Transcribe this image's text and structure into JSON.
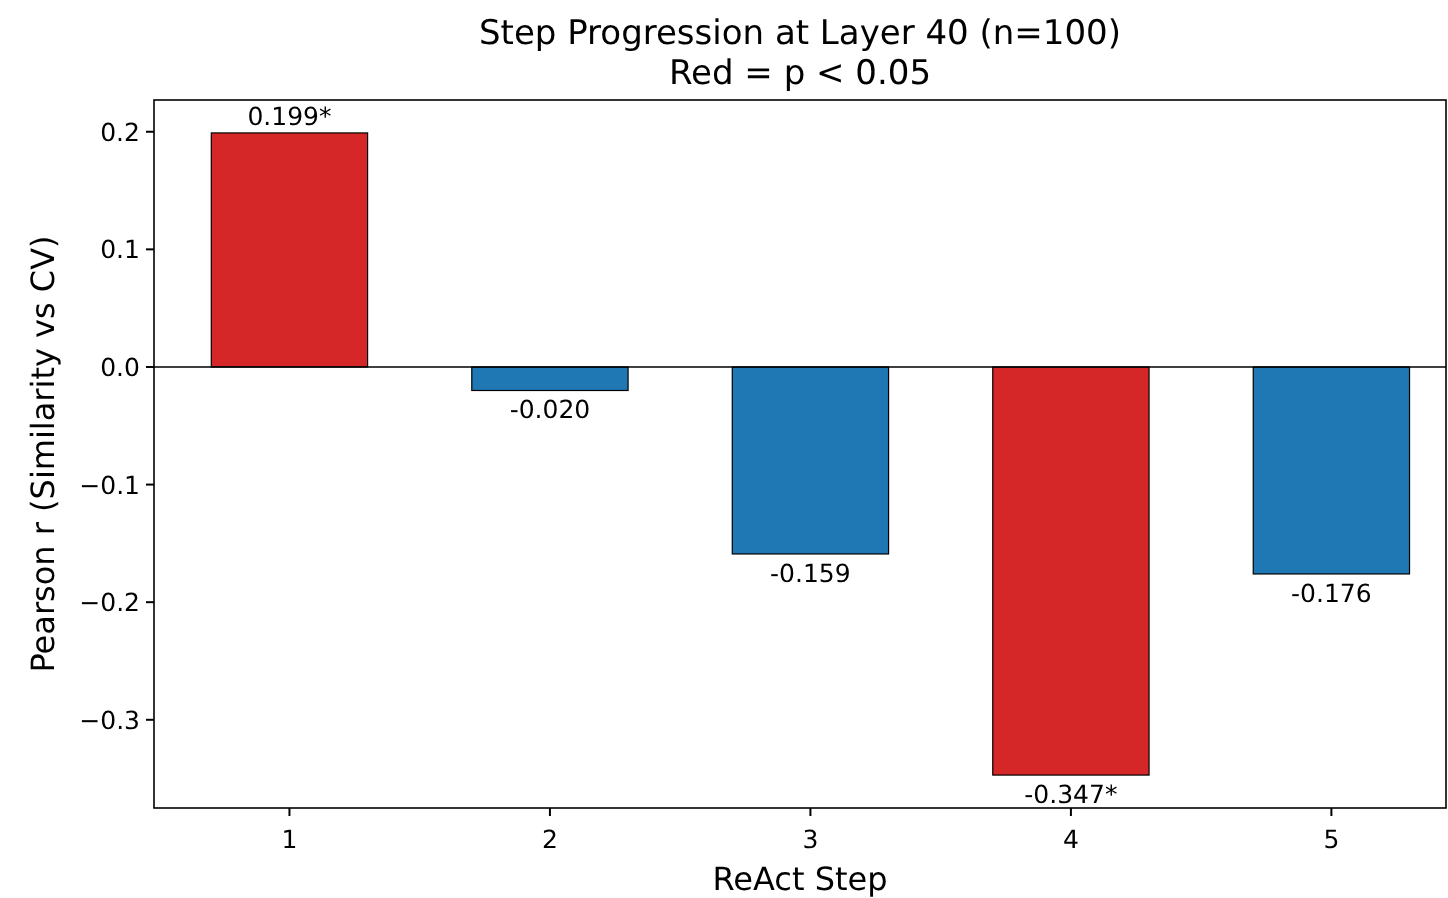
{
  "chart_data": {
    "type": "bar",
    "title": "Step Progression at Layer 40 (n=100)",
    "subtitle": "Red = p < 0.05",
    "xlabel": "ReAct Step",
    "ylabel": "Pearson r (Similarity vs CV)",
    "categories": [
      "1",
      "2",
      "3",
      "4",
      "5"
    ],
    "values": [
      0.199,
      -0.02,
      -0.159,
      -0.347,
      -0.176
    ],
    "colors": [
      "#d62728",
      "#1f77b4",
      "#1f77b4",
      "#d62728",
      "#1f77b4"
    ],
    "value_labels": [
      "0.199*",
      "-0.020",
      "-0.159",
      "-0.347*",
      "-0.176"
    ],
    "ylim": [
      -0.375,
      0.227
    ],
    "yticks": [
      {
        "value": -0.3,
        "label": "−0.3"
      },
      {
        "value": -0.2,
        "label": "−0.2"
      },
      {
        "value": -0.1,
        "label": "−0.1"
      },
      {
        "value": 0,
        "label": "0.0"
      },
      {
        "value": 0.1,
        "label": "0.1"
      },
      {
        "value": 0.2,
        "label": "0.2"
      }
    ],
    "ref_lines": [
      {
        "axis": "y",
        "value": 0,
        "color": "#000000"
      }
    ],
    "grid": false
  }
}
